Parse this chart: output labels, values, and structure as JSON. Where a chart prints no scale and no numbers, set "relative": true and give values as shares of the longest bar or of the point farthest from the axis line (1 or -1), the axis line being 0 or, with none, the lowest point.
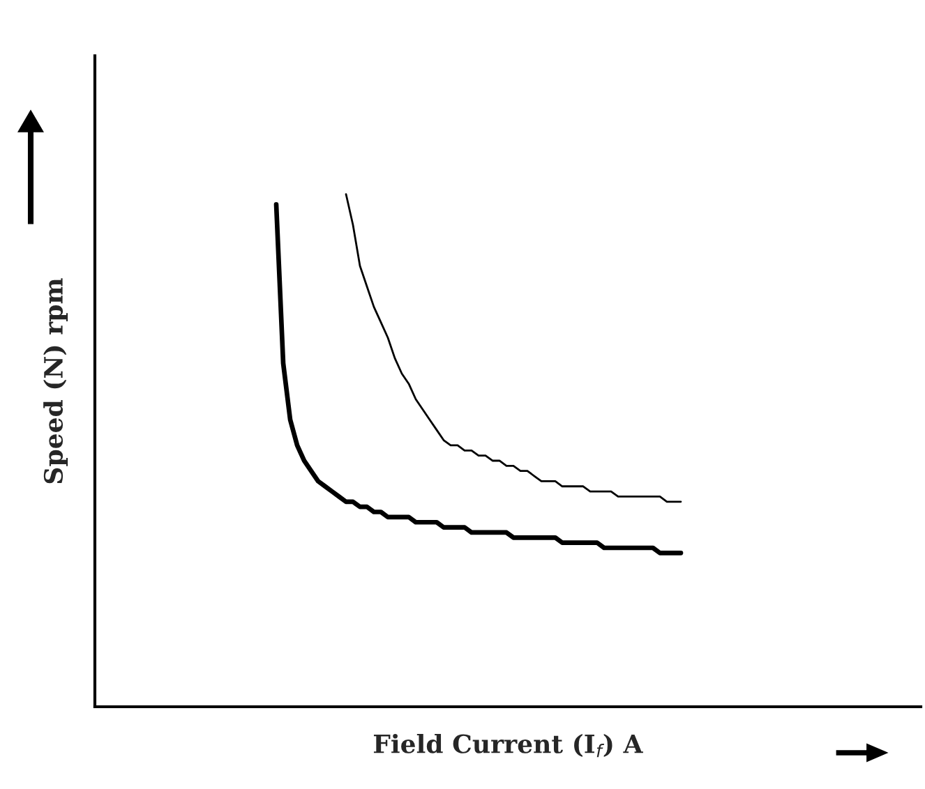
{
  "chart_data": {
    "type": "line",
    "relative": true,
    "xlabel": "Field Current (I$_{f}$) A",
    "ylabel": "Speed (N) rpm",
    "legend": false,
    "marker": "none",
    "line_style": "solid",
    "categories": [
      null,
      null,
      null,
      null,
      null,
      null,
      null,
      null,
      null,
      null,
      null,
      null,
      null,
      null,
      null,
      null,
      null,
      null,
      null,
      null,
      null,
      null,
      null,
      null,
      null,
      null,
      null,
      null,
      null,
      null,
      null,
      null,
      null,
      null,
      null,
      null,
      null,
      null,
      null,
      null,
      null,
      null,
      null,
      null,
      null,
      null,
      null,
      null,
      null,
      null,
      null,
      null,
      null,
      null,
      null,
      null,
      null,
      null,
      null,
      null,
      null,
      null,
      null,
      null,
      null,
      null,
      null,
      null,
      null,
      null,
      null,
      null,
      null,
      null,
      null,
      null,
      null,
      null,
      null,
      null,
      null,
      null,
      null,
      null,
      null,
      null,
      null,
      null,
      null,
      null,
      null,
      null,
      null,
      null,
      null,
      null,
      null,
      null,
      null,
      null,
      null,
      null,
      null,
      null,
      null,
      null,
      null,
      null,
      null,
      null,
      null,
      null,
      null,
      null,
      null,
      null,
      null,
      null,
      null
    ],
    "series": [
      {
        "color": "#000000",
        "values": [
          null,
          null,
          null,
          null,
          null,
          null,
          null,
          null,
          null,
          null,
          null,
          null,
          null,
          null,
          null,
          null,
          null,
          null,
          null,
          null,
          null,
          null,
          null,
          null,
          null,
          null,
          0.98,
          0.67,
          0.56,
          0.51,
          0.48,
          0.46,
          0.44,
          0.43,
          0.42,
          0.41,
          0.4,
          0.4,
          0.39,
          0.39,
          0.38,
          0.38,
          0.37,
          0.37,
          0.37,
          0.37,
          0.36,
          0.36,
          0.36,
          0.36,
          0.35,
          0.35,
          0.35,
          0.35,
          0.34,
          0.34,
          0.34,
          0.34,
          0.34,
          0.34,
          0.33,
          0.33,
          0.33,
          0.33,
          0.33,
          0.33,
          0.33,
          0.32,
          0.32,
          0.32,
          0.32,
          0.32,
          0.32,
          0.31,
          0.31,
          0.31,
          0.31,
          0.31,
          0.31,
          0.31,
          0.31,
          0.3,
          0.3,
          0.3,
          0.3,
          null,
          null,
          null,
          null,
          null,
          null,
          null,
          null,
          null,
          null,
          null,
          null,
          null,
          null,
          null,
          null,
          null,
          null,
          null,
          null,
          null,
          null,
          null,
          null,
          null,
          null,
          null,
          null,
          null,
          null,
          null,
          null,
          null,
          null
        ]
      },
      {
        "color": "#000000",
        "values": [
          null,
          null,
          null,
          null,
          null,
          null,
          null,
          null,
          null,
          null,
          null,
          null,
          null,
          null,
          null,
          null,
          null,
          null,
          null,
          null,
          null,
          null,
          null,
          null,
          null,
          null,
          null,
          null,
          null,
          null,
          null,
          null,
          null,
          null,
          null,
          null,
          1.0,
          0.94,
          0.86,
          0.82,
          0.78,
          0.75,
          0.72,
          0.68,
          0.65,
          0.63,
          0.6,
          0.58,
          0.56,
          0.54,
          0.52,
          0.51,
          0.51,
          0.5,
          0.5,
          0.49,
          0.49,
          0.48,
          0.48,
          0.47,
          0.47,
          0.46,
          0.46,
          0.45,
          0.44,
          0.44,
          0.44,
          0.43,
          0.43,
          0.43,
          0.43,
          0.42,
          0.42,
          0.42,
          0.42,
          0.41,
          0.41,
          0.41,
          0.41,
          0.41,
          0.41,
          0.41,
          0.4,
          0.4,
          0.4,
          null,
          null,
          null,
          null,
          null,
          null,
          null,
          null,
          null,
          null,
          null,
          null,
          null,
          null,
          null,
          null,
          null,
          null,
          null,
          null,
          null,
          null,
          null,
          null,
          null,
          null,
          null,
          null,
          null,
          null,
          null,
          null,
          null,
          null
        ]
      }
    ]
  }
}
